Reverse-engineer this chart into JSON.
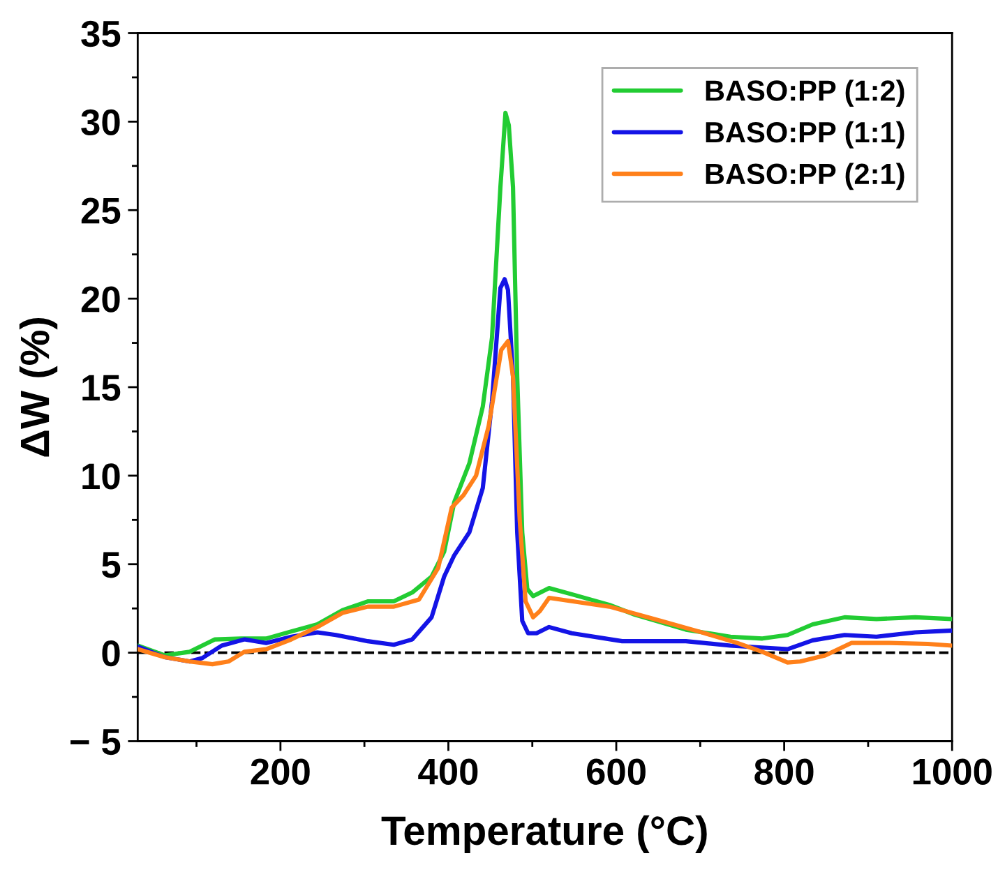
{
  "chart_data": {
    "type": "line",
    "xlabel": "Temperature (°C)",
    "ylabel": "ΔW (%)",
    "xlim": [
      30,
      1000
    ],
    "ylim": [
      -5,
      35
    ],
    "xticks": [
      200,
      400,
      600,
      800,
      1000
    ],
    "yticks": [
      {
        "value": -5,
        "label": "− 5"
      },
      0,
      5,
      10,
      15,
      20,
      25,
      30,
      35
    ],
    "grid": false,
    "legend": "top right",
    "marker": "none",
    "line_style": "solid",
    "ref_lines": [
      {
        "axis": "y",
        "value": 0,
        "label": null,
        "color": "#000000",
        "line_style": "dashed"
      }
    ],
    "series": [
      {
        "name": "BASO:PP (1:2)",
        "color": "#22cc33",
        "x": [
          30,
          62,
          92,
          122,
          153,
          183,
          213,
          244,
          274,
          304,
          335,
          357,
          380,
          395,
          407,
          425,
          441,
          452,
          462,
          468,
          472,
          477,
          482,
          488,
          494,
          501,
          520,
          547,
          592,
          622,
          683,
          736,
          774,
          804,
          834,
          872,
          910,
          956,
          1000
        ],
        "values": [
          0.4,
          -0.15,
          0.05,
          0.75,
          0.8,
          0.8,
          1.2,
          1.6,
          2.4,
          2.9,
          2.9,
          3.4,
          4.3,
          5.7,
          8.5,
          10.7,
          13.9,
          17.8,
          26.3,
          30.5,
          29.8,
          26.3,
          15.6,
          6.8,
          3.6,
          3.2,
          3.65,
          3.3,
          2.7,
          2.15,
          1.3,
          0.9,
          0.8,
          1.0,
          1.6,
          2.0,
          1.9,
          2.0,
          1.9
        ]
      },
      {
        "name": "BASO:PP (1:1)",
        "color": "#1414e6",
        "x": [
          30,
          62,
          92,
          107,
          130,
          157,
          183,
          213,
          244,
          266,
          304,
          335,
          357,
          380,
          395,
          407,
          425,
          441,
          452,
          462,
          467,
          471,
          477,
          482,
          488,
          495,
          505,
          520,
          547,
          607,
          683,
          736,
          804,
          834,
          872,
          910,
          956,
          1000
        ],
        "values": [
          0.35,
          -0.25,
          -0.5,
          -0.3,
          0.4,
          0.75,
          0.55,
          0.9,
          1.15,
          1.0,
          0.65,
          0.45,
          0.75,
          2.0,
          4.3,
          5.5,
          6.8,
          9.3,
          14.2,
          20.6,
          21.1,
          20.5,
          15.6,
          6.8,
          1.8,
          1.1,
          1.1,
          1.45,
          1.1,
          0.65,
          0.65,
          0.4,
          0.2,
          0.7,
          1.0,
          0.9,
          1.15,
          1.25
        ]
      },
      {
        "name": "BASO:PP (2:1)",
        "color": "#ff801a",
        "x": [
          30,
          62,
          92,
          119,
          138,
          157,
          183,
          213,
          244,
          274,
          304,
          335,
          365,
          388,
          404,
          418,
          433,
          448,
          463,
          471,
          477,
          485,
          492,
          501,
          509,
          520,
          592,
          653,
          698,
          744,
          774,
          804,
          819,
          849,
          880,
          925,
          971,
          1000
        ],
        "values": [
          0.2,
          -0.25,
          -0.5,
          -0.65,
          -0.5,
          0.05,
          0.2,
          0.75,
          1.45,
          2.25,
          2.6,
          2.6,
          3.0,
          4.8,
          8.2,
          8.9,
          10.0,
          12.8,
          17.1,
          17.6,
          15.6,
          7.5,
          2.9,
          2.0,
          2.35,
          3.1,
          2.6,
          1.8,
          1.2,
          0.55,
          0.05,
          -0.55,
          -0.5,
          -0.15,
          0.55,
          0.55,
          0.5,
          0.4
        ]
      }
    ]
  }
}
